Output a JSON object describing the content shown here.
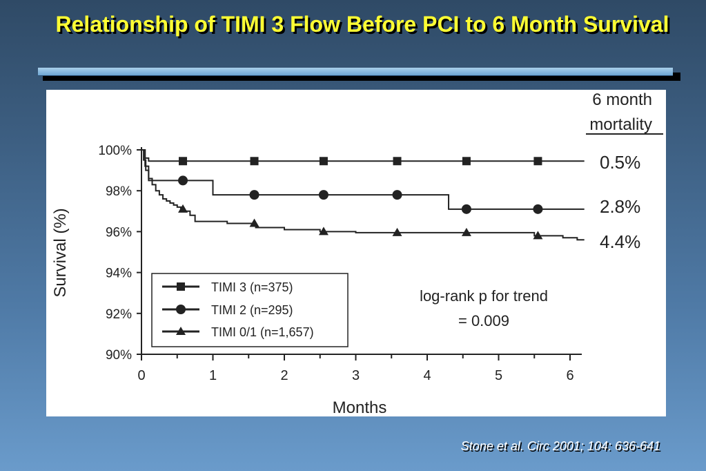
{
  "slide": {
    "title": "Relationship of TIMI 3 Flow Before PCI to 6 Month Survival",
    "citation": "Stone et al. Circ 2001; 104: 636-641"
  },
  "chart_data": {
    "type": "line",
    "step": true,
    "xlabel": "Months",
    "ylabel": "Survival (%)",
    "xlim": [
      0,
      6.2
    ],
    "ylim": [
      90,
      100
    ],
    "x_ticks": [
      "0",
      "1",
      "2",
      "3",
      "4",
      "5",
      "6"
    ],
    "y_ticks": [
      "90%",
      "92%",
      "94%",
      "96%",
      "98%",
      "100%"
    ],
    "legend_placement": "bottom-left",
    "annotation": [
      "log-rank p for trend",
      "= 0.009"
    ],
    "mortality_header": [
      "6 month",
      "mortality"
    ],
    "series": [
      {
        "name": "TIMI 3 (n=375)",
        "marker": "square",
        "mortality": "0.5%",
        "x": [
          0,
          0.05,
          0.1,
          6.2
        ],
        "y": [
          100,
          99.6,
          99.45,
          99.45
        ],
        "marker_x": [
          0.58,
          1.58,
          2.55,
          3.58,
          4.55,
          5.55
        ]
      },
      {
        "name": "TIMI 2 (n=295)",
        "marker": "circle",
        "mortality": "2.8%",
        "x": [
          0,
          0.05,
          0.1,
          1.0,
          4.3,
          6.2
        ],
        "y": [
          100,
          99.2,
          98.5,
          97.8,
          97.1,
          97.1
        ],
        "marker_x": [
          0.58,
          1.58,
          2.55,
          3.58,
          4.55,
          5.55
        ]
      },
      {
        "name": "TIMI 0/1 (n=1,657)",
        "marker": "triangle",
        "mortality": "4.4%",
        "x": [
          0,
          0.03,
          0.06,
          0.1,
          0.15,
          0.2,
          0.25,
          0.3,
          0.35,
          0.4,
          0.45,
          0.5,
          0.55,
          0.6,
          0.68,
          0.75,
          1.2,
          1.6,
          2.0,
          2.5,
          3.0,
          5.5,
          5.9,
          6.1,
          6.2
        ],
        "y": [
          100,
          99.5,
          99.0,
          98.6,
          98.3,
          98.0,
          97.8,
          97.6,
          97.5,
          97.4,
          97.3,
          97.2,
          97.1,
          97.0,
          96.8,
          96.5,
          96.4,
          96.2,
          96.1,
          96.0,
          95.95,
          95.8,
          95.7,
          95.6,
          95.6
        ],
        "marker_x": [
          0.58,
          1.58,
          2.55,
          3.58,
          4.55,
          5.55
        ]
      }
    ]
  }
}
